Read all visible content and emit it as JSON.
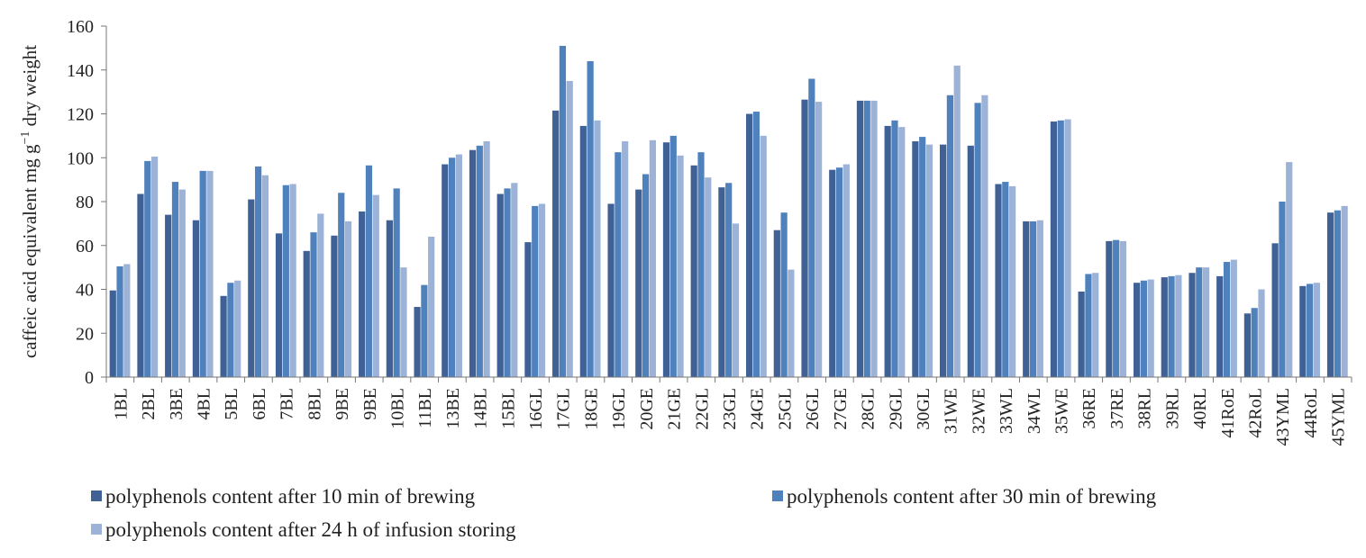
{
  "chart_data": {
    "type": "bar",
    "ylabel": "caffeic acid equivalent mg g",
    "ylabel_sup": "−1",
    "ylabel_tail": " dry weight",
    "xlabel": "",
    "ylim": [
      0,
      160
    ],
    "yticks": [
      0,
      20,
      40,
      60,
      80,
      100,
      120,
      140,
      160
    ],
    "yticks_text": [
      "0",
      "20",
      "40",
      "60",
      "80",
      "100",
      "120",
      "140",
      "160"
    ],
    "grid": false,
    "legend_position": "bottom",
    "categories": [
      "1BL",
      "2BL",
      "3BE",
      "4BL",
      "5BL",
      "6BL",
      "7BL",
      "8BL",
      "9BE",
      "9BE",
      "10BL",
      "11BL",
      "13BE",
      "14BL",
      "15BL",
      "16GL",
      "17GL",
      "18GE",
      "19GL",
      "20GE",
      "21GE",
      "22GL",
      "23GL",
      "24GE",
      "25GL",
      "26GL",
      "27GE",
      "28GL",
      "29GL",
      "30GL",
      "31WE",
      "32WE",
      "33WL",
      "34WL",
      "35WE",
      "36RE",
      "37RE",
      "38RL",
      "39RL",
      "40RL",
      "41RoE",
      "42RoL",
      "43YML",
      "44RoL",
      "45YML"
    ],
    "series": [
      {
        "name": "polyphenols content after 10 min of brewing",
        "color": "#3f6196",
        "values": [
          39.5,
          83.5,
          74,
          71.5,
          37,
          81,
          65.5,
          57.5,
          64.5,
          75.5,
          71.5,
          32,
          97,
          103.5,
          83.5,
          61.5,
          121.5,
          114.5,
          79,
          85.5,
          107,
          96.5,
          86.5,
          120,
          67,
          126.5,
          94.5,
          126,
          114.5,
          107.5,
          106,
          105.5,
          88,
          71,
          116.5,
          39,
          62,
          43,
          45.5,
          47.5,
          46,
          29,
          61,
          41.5,
          75
        ]
      },
      {
        "name": "polyphenols content after 30 min of brewing",
        "color": "#4f81bd",
        "values": [
          50.5,
          98.5,
          89,
          94,
          43,
          96,
          87.5,
          66,
          84,
          96.5,
          86,
          42,
          100,
          105.5,
          86,
          78,
          151,
          144,
          102.5,
          92.5,
          110,
          102.5,
          88.5,
          121,
          75,
          136,
          95.5,
          126,
          117,
          109.5,
          128.5,
          125,
          89,
          71,
          117,
          47,
          62.5,
          44,
          46,
          50,
          52.5,
          31.5,
          80,
          42.5,
          76
        ]
      },
      {
        "name": "polyphenols content after 24 h of infusion storing",
        "color": "#9cb2d6",
        "values": [
          51.5,
          100.5,
          85.5,
          94,
          44,
          92,
          88,
          74.5,
          71,
          83,
          50,
          64,
          101.5,
          107.5,
          88.5,
          79,
          135,
          117,
          107.5,
          108,
          101,
          91,
          70,
          110,
          49,
          125.5,
          97,
          126,
          114,
          106,
          142,
          128.5,
          87,
          71.5,
          117.5,
          47.5,
          62,
          44.5,
          46.5,
          50,
          53.5,
          40,
          98,
          43,
          78
        ]
      }
    ]
  }
}
